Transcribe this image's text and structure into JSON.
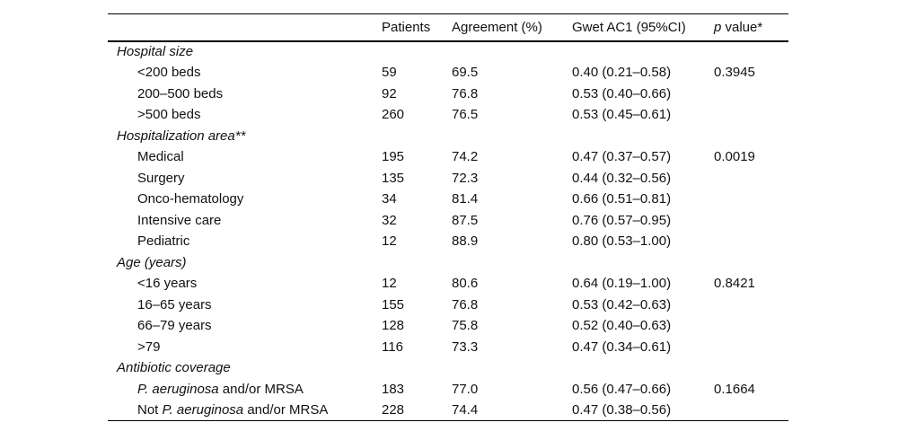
{
  "page": {
    "background_color": "#ffffff",
    "text_color": "#111111",
    "rule_color": "#000000"
  },
  "table": {
    "header": {
      "col_label": "",
      "col_patients": "Patients",
      "col_agreement": "Agreement (%)",
      "col_gwet": "Gwet AC1 (95%CI)",
      "col_p_italic": "p",
      "col_p_rest": " value*"
    },
    "sections": [
      {
        "label": "Hospital size",
        "rows": [
          {
            "label_parts": [
              {
                "t": "<200 beds",
                "i": false
              }
            ],
            "patients": "59",
            "agreement": "69.5",
            "gwet": "0.40 (0.21–0.58)",
            "p": "0.3945"
          },
          {
            "label_parts": [
              {
                "t": "200–500 beds",
                "i": false
              }
            ],
            "patients": "92",
            "agreement": "76.8",
            "gwet": "0.53 (0.40–0.66)",
            "p": ""
          },
          {
            "label_parts": [
              {
                "t": ">500 beds",
                "i": false
              }
            ],
            "patients": "260",
            "agreement": "76.5",
            "gwet": "0.53 (0.45–0.61)",
            "p": ""
          }
        ]
      },
      {
        "label": "Hospitalization area**",
        "rows": [
          {
            "label_parts": [
              {
                "t": "Medical",
                "i": false
              }
            ],
            "patients": "195",
            "agreement": "74.2",
            "gwet": "0.47 (0.37–0.57)",
            "p": "0.0019"
          },
          {
            "label_parts": [
              {
                "t": "Surgery",
                "i": false
              }
            ],
            "patients": "135",
            "agreement": "72.3",
            "gwet": "0.44 (0.32–0.56)",
            "p": ""
          },
          {
            "label_parts": [
              {
                "t": "Onco-hematology",
                "i": false
              }
            ],
            "patients": "34",
            "agreement": "81.4",
            "gwet": "0.66 (0.51–0.81)",
            "p": ""
          },
          {
            "label_parts": [
              {
                "t": "Intensive care",
                "i": false
              }
            ],
            "patients": "32",
            "agreement": "87.5",
            "gwet": "0.76 (0.57–0.95)",
            "p": ""
          },
          {
            "label_parts": [
              {
                "t": "Pediatric",
                "i": false
              }
            ],
            "patients": "12",
            "agreement": "88.9",
            "gwet": "0.80 (0.53–1.00)",
            "p": ""
          }
        ]
      },
      {
        "label": "Age (years)",
        "rows": [
          {
            "label_parts": [
              {
                "t": "<16 years",
                "i": false
              }
            ],
            "patients": "12",
            "agreement": "80.6",
            "gwet": "0.64 (0.19–1.00)",
            "p": "0.8421"
          },
          {
            "label_parts": [
              {
                "t": "16–65 years",
                "i": false
              }
            ],
            "patients": "155",
            "agreement": "76.8",
            "gwet": "0.53 (0.42–0.63)",
            "p": ""
          },
          {
            "label_parts": [
              {
                "t": "66–79 years",
                "i": false
              }
            ],
            "patients": "128",
            "agreement": "75.8",
            "gwet": "0.52 (0.40–0.63)",
            "p": ""
          },
          {
            "label_parts": [
              {
                "t": ">79",
                "i": false
              }
            ],
            "patients": "116",
            "agreement": "73.3",
            "gwet": "0.47 (0.34–0.61)",
            "p": ""
          }
        ]
      },
      {
        "label": "Antibiotic coverage",
        "rows": [
          {
            "label_parts": [
              {
                "t": "P. aeruginosa",
                "i": true
              },
              {
                "t": " and/or MRSA",
                "i": false
              }
            ],
            "patients": "183",
            "agreement": "77.0",
            "gwet": "0.56 (0.47–0.66)",
            "p": "0.1664"
          },
          {
            "label_parts": [
              {
                "t": "Not ",
                "i": false
              },
              {
                "t": "P. aeruginosa",
                "i": true
              },
              {
                "t": " and/or MRSA",
                "i": false
              }
            ],
            "patients": "228",
            "agreement": "74.4",
            "gwet": "0.47 (0.38–0.56)",
            "p": ""
          }
        ]
      }
    ]
  }
}
